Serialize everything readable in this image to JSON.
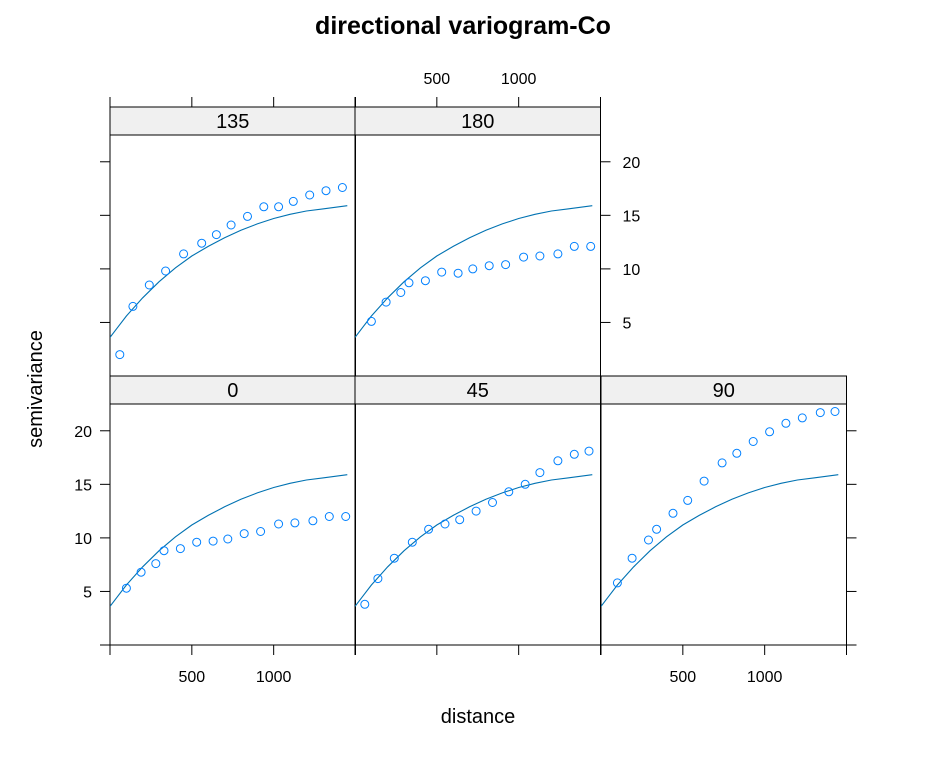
{
  "chart_data": {
    "type": "scatter",
    "title": "directional variogram-Co",
    "xlabel": "distance",
    "ylabel": "semivariance",
    "xlim": [
      0,
      1500
    ],
    "ylim": [
      0,
      22.5
    ],
    "x_ticks": [
      500,
      1000
    ],
    "y_ticks": [
      5,
      10,
      15,
      20
    ],
    "grid": false,
    "layout": "3 columns x 2 rows, lattice panels with strip labels",
    "point_color": "#0080ff",
    "line_color": "#0072b2",
    "model_curve": {
      "description": "fitted variogram model drawn as solid line in every panel",
      "x_range": [
        0,
        1450
      ],
      "points": [
        [
          0,
          3.6
        ],
        [
          50,
          4.6
        ],
        [
          100,
          5.6
        ],
        [
          200,
          7.3
        ],
        [
          300,
          8.8
        ],
        [
          400,
          10.1
        ],
        [
          500,
          11.2
        ],
        [
          600,
          12.1
        ],
        [
          700,
          12.9
        ],
        [
          800,
          13.6
        ],
        [
          900,
          14.2
        ],
        [
          1000,
          14.7
        ],
        [
          1100,
          15.1
        ],
        [
          1200,
          15.4
        ],
        [
          1300,
          15.6
        ],
        [
          1450,
          15.9
        ]
      ]
    },
    "panels": [
      {
        "label": "135",
        "row": 0,
        "col": 0,
        "points": [
          [
            60,
            2.0
          ],
          [
            140,
            6.5
          ],
          [
            240,
            8.5
          ],
          [
            340,
            9.8
          ],
          [
            450,
            11.4
          ],
          [
            560,
            12.4
          ],
          [
            650,
            13.2
          ],
          [
            740,
            14.1
          ],
          [
            840,
            14.9
          ],
          [
            940,
            15.8
          ],
          [
            1030,
            15.8
          ],
          [
            1120,
            16.3
          ],
          [
            1220,
            16.9
          ],
          [
            1320,
            17.3
          ],
          [
            1420,
            17.6
          ]
        ]
      },
      {
        "label": "180",
        "row": 0,
        "col": 1,
        "points": [
          [
            100,
            5.1
          ],
          [
            190,
            6.9
          ],
          [
            280,
            7.8
          ],
          [
            330,
            8.7
          ],
          [
            430,
            8.9
          ],
          [
            530,
            9.7
          ],
          [
            630,
            9.6
          ],
          [
            720,
            10.0
          ],
          [
            820,
            10.3
          ],
          [
            920,
            10.4
          ],
          [
            1030,
            11.1
          ],
          [
            1130,
            11.2
          ],
          [
            1240,
            11.4
          ],
          [
            1340,
            12.1
          ],
          [
            1440,
            12.1
          ]
        ]
      },
      {
        "label": "0",
        "row": 1,
        "col": 0,
        "points": [
          [
            100,
            5.3
          ],
          [
            190,
            6.8
          ],
          [
            280,
            7.6
          ],
          [
            330,
            8.8
          ],
          [
            430,
            9.0
          ],
          [
            530,
            9.6
          ],
          [
            630,
            9.7
          ],
          [
            720,
            9.9
          ],
          [
            820,
            10.4
          ],
          [
            920,
            10.6
          ],
          [
            1030,
            11.3
          ],
          [
            1130,
            11.4
          ],
          [
            1240,
            11.6
          ],
          [
            1340,
            12.0
          ],
          [
            1440,
            12.0
          ]
        ]
      },
      {
        "label": "45",
        "row": 1,
        "col": 1,
        "points": [
          [
            60,
            3.8
          ],
          [
            140,
            6.2
          ],
          [
            240,
            8.1
          ],
          [
            350,
            9.6
          ],
          [
            450,
            10.8
          ],
          [
            550,
            11.3
          ],
          [
            640,
            11.7
          ],
          [
            740,
            12.5
          ],
          [
            840,
            13.3
          ],
          [
            940,
            14.3
          ],
          [
            1040,
            15.0
          ],
          [
            1130,
            16.1
          ],
          [
            1240,
            17.2
          ],
          [
            1340,
            17.8
          ],
          [
            1430,
            18.1
          ]
        ]
      },
      {
        "label": "90",
        "row": 1,
        "col": 2,
        "points": [
          [
            100,
            5.8
          ],
          [
            190,
            8.1
          ],
          [
            290,
            9.8
          ],
          [
            340,
            10.8
          ],
          [
            440,
            12.3
          ],
          [
            530,
            13.5
          ],
          [
            630,
            15.3
          ],
          [
            740,
            17.0
          ],
          [
            830,
            17.9
          ],
          [
            930,
            19.0
          ],
          [
            1030,
            19.9
          ],
          [
            1130,
            20.7
          ],
          [
            1230,
            21.2
          ],
          [
            1340,
            21.7
          ],
          [
            1430,
            21.8
          ]
        ]
      }
    ]
  }
}
